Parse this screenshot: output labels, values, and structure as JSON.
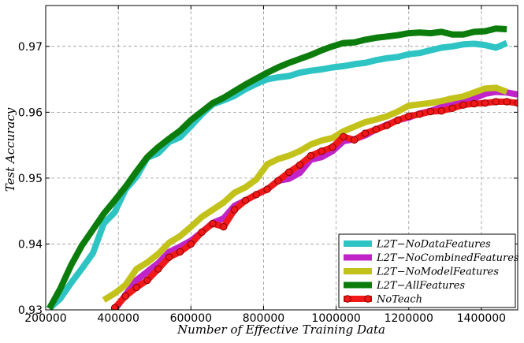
{
  "chart_data": {
    "type": "line",
    "title": "",
    "xlabel": "Number of Effective Training Data",
    "ylabel": "Test Accuracy",
    "xlim": [
      200000,
      1500000
    ],
    "ylim": [
      0.93,
      0.9762
    ],
    "xticks": [
      200000,
      400000,
      600000,
      800000,
      1000000,
      1200000,
      1400000
    ],
    "xtick_labels": [
      "200000",
      "400000",
      "600000",
      "800000",
      "1000000",
      "1200000",
      "1400000"
    ],
    "yticks": [
      0.93,
      0.94,
      0.95,
      0.96,
      0.97
    ],
    "ytick_labels": [
      "0.93",
      "0.94",
      "0.95",
      "0.96",
      "0.97"
    ],
    "grid": true,
    "legend_position": "bottom-right",
    "series": [
      {
        "name": "L2T−NoDataFeatures",
        "color": "#2ec4c4",
        "marker": "none",
        "x": [
          210000,
          240000,
          270000,
          300000,
          330000,
          360000,
          390000,
          420000,
          450000,
          480000,
          510000,
          540000,
          570000,
          600000,
          630000,
          660000,
          690000,
          720000,
          750000,
          780000,
          810000,
          840000,
          870000,
          900000,
          930000,
          960000,
          990000,
          1020000,
          1050000,
          1080000,
          1110000,
          1140000,
          1170000,
          1200000,
          1230000,
          1260000,
          1290000,
          1320000,
          1350000,
          1380000,
          1410000,
          1440000,
          1470000
        ],
        "y": [
          0.9302,
          0.9317,
          0.9341,
          0.9363,
          0.9386,
          0.9431,
          0.9448,
          0.9483,
          0.9502,
          0.9531,
          0.9538,
          0.9555,
          0.9562,
          0.9579,
          0.9597,
          0.9612,
          0.9618,
          0.9625,
          0.9635,
          0.9643,
          0.965,
          0.9653,
          0.9655,
          0.966,
          0.9663,
          0.9665,
          0.9668,
          0.967,
          0.9673,
          0.9675,
          0.9679,
          0.9682,
          0.9684,
          0.9688,
          0.969,
          0.9694,
          0.9698,
          0.97,
          0.9703,
          0.9704,
          0.9702,
          0.9698,
          0.9705
        ]
      },
      {
        "name": "L2T−NoCombinedFeatures",
        "color": "#c023c8",
        "marker": "none",
        "x": [
          390000,
          420000,
          450000,
          480000,
          510000,
          540000,
          570000,
          600000,
          630000,
          660000,
          690000,
          720000,
          750000,
          780000,
          810000,
          840000,
          870000,
          900000,
          930000,
          960000,
          990000,
          1020000,
          1050000,
          1080000,
          1110000,
          1140000,
          1170000,
          1200000,
          1230000,
          1260000,
          1290000,
          1320000,
          1350000,
          1380000,
          1410000,
          1440000,
          1470000,
          1500000
        ],
        "y": [
          0.93,
          0.9323,
          0.9345,
          0.9358,
          0.9371,
          0.9388,
          0.9396,
          0.9405,
          0.9418,
          0.9432,
          0.9439,
          0.9458,
          0.9466,
          0.9475,
          0.9483,
          0.9496,
          0.9499,
          0.9508,
          0.9528,
          0.9532,
          0.9541,
          0.9556,
          0.9559,
          0.9565,
          0.9574,
          0.9581,
          0.9588,
          0.9592,
          0.9598,
          0.9602,
          0.9608,
          0.9611,
          0.9616,
          0.9621,
          0.9628,
          0.9631,
          0.963,
          0.9627
        ]
      },
      {
        "name": "L2T−NoModelFeatures",
        "color": "#c2c21b",
        "marker": "none",
        "x": [
          360000,
          390000,
          420000,
          450000,
          480000,
          510000,
          540000,
          570000,
          600000,
          630000,
          660000,
          690000,
          720000,
          750000,
          780000,
          810000,
          840000,
          870000,
          900000,
          930000,
          960000,
          990000,
          1020000,
          1050000,
          1080000,
          1110000,
          1140000,
          1170000,
          1200000,
          1230000,
          1260000,
          1290000,
          1320000,
          1350000,
          1380000,
          1410000,
          1440000,
          1470000
        ],
        "y": [
          0.9315,
          0.9325,
          0.9338,
          0.9362,
          0.9372,
          0.9385,
          0.9402,
          0.9412,
          0.9426,
          0.9441,
          0.9452,
          0.9463,
          0.9478,
          0.9486,
          0.9498,
          0.9521,
          0.9529,
          0.9534,
          0.9541,
          0.9551,
          0.9557,
          0.9561,
          0.9571,
          0.9578,
          0.9585,
          0.9589,
          0.9594,
          0.9601,
          0.961,
          0.9612,
          0.9614,
          0.9617,
          0.9621,
          0.9624,
          0.963,
          0.9636,
          0.9637,
          0.9631
        ]
      },
      {
        "name": "L2T−AllFeatures",
        "color": "#0c7d0c",
        "marker": "none",
        "x": [
          210000,
          240000,
          270000,
          300000,
          330000,
          360000,
          390000,
          420000,
          450000,
          480000,
          510000,
          540000,
          570000,
          600000,
          630000,
          660000,
          690000,
          720000,
          750000,
          780000,
          810000,
          840000,
          870000,
          900000,
          930000,
          960000,
          990000,
          1020000,
          1050000,
          1080000,
          1110000,
          1140000,
          1170000,
          1200000,
          1230000,
          1260000,
          1290000,
          1320000,
          1350000,
          1380000,
          1410000,
          1440000,
          1470000
        ],
        "y": [
          0.9302,
          0.9332,
          0.9368,
          0.9398,
          0.9422,
          0.9446,
          0.9466,
          0.9487,
          0.951,
          0.9532,
          0.9547,
          0.956,
          0.9572,
          0.9588,
          0.9601,
          0.9614,
          0.9622,
          0.9632,
          0.9642,
          0.9651,
          0.966,
          0.9668,
          0.9675,
          0.9681,
          0.9687,
          0.9694,
          0.97,
          0.9705,
          0.9706,
          0.971,
          0.9713,
          0.9715,
          0.9717,
          0.972,
          0.9721,
          0.972,
          0.9722,
          0.9718,
          0.9718,
          0.9722,
          0.9723,
          0.9727,
          0.9726
        ]
      },
      {
        "name": "NoTeach",
        "color": "#f01818",
        "marker": "circle",
        "x": [
          390000,
          420000,
          450000,
          480000,
          510000,
          540000,
          570000,
          600000,
          630000,
          660000,
          690000,
          720000,
          750000,
          780000,
          810000,
          840000,
          870000,
          900000,
          930000,
          960000,
          990000,
          1020000,
          1050000,
          1080000,
          1110000,
          1140000,
          1170000,
          1200000,
          1230000,
          1260000,
          1290000,
          1320000,
          1350000,
          1380000,
          1410000,
          1440000,
          1470000,
          1500000
        ],
        "y": [
          0.9303,
          0.9321,
          0.9334,
          0.9345,
          0.9362,
          0.938,
          0.9388,
          0.94,
          0.9418,
          0.9431,
          0.9426,
          0.9452,
          0.9466,
          0.9475,
          0.9483,
          0.9496,
          0.9509,
          0.952,
          0.9534,
          0.9541,
          0.9547,
          0.9563,
          0.9558,
          0.9568,
          0.9574,
          0.958,
          0.9588,
          0.9594,
          0.9597,
          0.9601,
          0.9602,
          0.9606,
          0.9611,
          0.9613,
          0.9614,
          0.9616,
          0.9616,
          0.9614
        ]
      }
    ]
  }
}
